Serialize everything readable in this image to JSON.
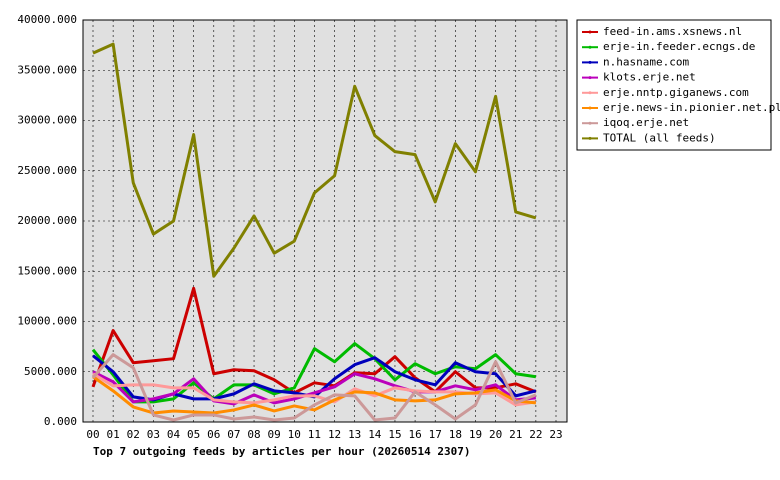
{
  "chart_data": {
    "type": "line",
    "title": "Top 7 outgoing feeds by articles per hour (20260514 2307)",
    "categories": [
      "00",
      "01",
      "02",
      "03",
      "04",
      "05",
      "06",
      "07",
      "08",
      "09",
      "10",
      "11",
      "12",
      "13",
      "14",
      "15",
      "16",
      "17",
      "18",
      "19",
      "20",
      "21",
      "22",
      "23"
    ],
    "ylim": [
      0,
      40000
    ],
    "yticks": [
      {
        "value": 0,
        "label": "0.000"
      },
      {
        "value": 5000,
        "label": "5000.000"
      },
      {
        "value": 10000,
        "label": "10000.000"
      },
      {
        "value": 15000,
        "label": "15000.000"
      },
      {
        "value": 20000,
        "label": "20000.000"
      },
      {
        "value": 25000,
        "label": "25000.000"
      },
      {
        "value": 30000,
        "label": "30000.000"
      },
      {
        "value": 35000,
        "label": "35000.000"
      },
      {
        "value": 40000,
        "label": "40000.000"
      }
    ],
    "grid": true,
    "legend": "outside-right",
    "series": [
      {
        "name": "feed-in.ams.xsnews.nl",
        "color": "#cc0000",
        "values": [
          3500,
          9100,
          5900,
          6100,
          6300,
          13300,
          4800,
          5200,
          5100,
          4200,
          2900,
          3900,
          3600,
          4900,
          4800,
          6500,
          4400,
          3000,
          5000,
          3400,
          3400,
          3800,
          3000,
          null
        ]
      },
      {
        "name": "erje-in.feeder.ecngs.de",
        "color": "#00bb00",
        "values": [
          7200,
          4700,
          2000,
          2000,
          2300,
          3900,
          2300,
          3700,
          3700,
          2800,
          3400,
          7300,
          6000,
          7800,
          6300,
          4200,
          5800,
          4800,
          5500,
          5300,
          6700,
          4800,
          4500,
          null
        ]
      },
      {
        "name": "n.hasname.com",
        "color": "#0000bb",
        "values": [
          6600,
          5000,
          2500,
          2200,
          2800,
          2300,
          2300,
          2800,
          3800,
          3100,
          2900,
          2500,
          4300,
          5700,
          6400,
          5000,
          4200,
          3700,
          5900,
          5000,
          4800,
          2600,
          3100,
          null
        ]
      },
      {
        "name": "klots.erje.net",
        "color": "#bb00bb",
        "values": [
          5000,
          4000,
          2000,
          2300,
          2800,
          4300,
          2100,
          1800,
          2700,
          1900,
          2300,
          2900,
          3500,
          4800,
          4300,
          3600,
          3000,
          3000,
          3600,
          3200,
          3700,
          2200,
          2400,
          null
        ]
      },
      {
        "name": "erje.nntp.giganews.com",
        "color": "#ff9999",
        "values": [
          4800,
          3600,
          3700,
          3700,
          3400,
          3400,
          2200,
          2000,
          1900,
          2200,
          2600,
          2600,
          2000,
          3300,
          2600,
          3400,
          3100,
          3000,
          3000,
          2800,
          2900,
          1700,
          2000,
          null
        ]
      },
      {
        "name": "erje.news-in.pionier.net.pl",
        "color": "#ff8c00",
        "values": [
          4500,
          3100,
          1500,
          900,
          1100,
          1000,
          900,
          1200,
          1700,
          1100,
          1600,
          1200,
          2200,
          3000,
          2900,
          2200,
          2100,
          2200,
          2800,
          2900,
          3200,
          2100,
          1900,
          null
        ]
      },
      {
        "name": "iqoq.erje.net",
        "color": "#cc9999",
        "values": [
          4400,
          6700,
          5400,
          700,
          200,
          700,
          700,
          300,
          500,
          200,
          400,
          1700,
          2700,
          2600,
          200,
          400,
          3000,
          1700,
          300,
          1700,
          6000,
          1900,
          2700,
          null
        ]
      },
      {
        "name": "TOTAL (all feeds)",
        "color": "#808000",
        "values": [
          36700,
          37600,
          23800,
          18700,
          20000,
          28600,
          14500,
          17300,
          20500,
          16800,
          18000,
          22800,
          24500,
          33400,
          28500,
          26900,
          26600,
          21900,
          27700,
          24900,
          32400,
          20900,
          20300,
          null
        ]
      }
    ]
  }
}
